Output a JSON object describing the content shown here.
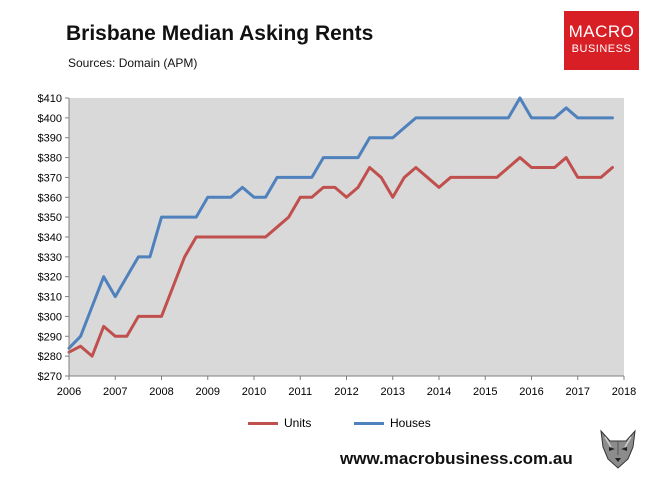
{
  "header": {
    "title": "Brisbane Median Asking Rents",
    "subtitle": "Sources: Domain (APM)"
  },
  "brand": {
    "logo_line1": "MACRO",
    "logo_line2": "BUSINESS",
    "logo_color": "#d91f26",
    "website": "www.macrobusiness.com.au",
    "mascot_icon": "wolf-icon"
  },
  "chart_data": {
    "type": "line",
    "title": "Brisbane Median Asking Rents",
    "xlabel": "",
    "ylabel": "",
    "xlim": [
      2006,
      2018
    ],
    "ylim": [
      270,
      410
    ],
    "x_ticks": [
      2006,
      2007,
      2008,
      2009,
      2010,
      2011,
      2012,
      2013,
      2014,
      2015,
      2016,
      2017,
      2018
    ],
    "y_ticks": [
      270,
      280,
      290,
      300,
      310,
      320,
      330,
      340,
      350,
      360,
      370,
      380,
      390,
      400,
      410
    ],
    "y_tick_labels": [
      "$270",
      "$280",
      "$290",
      "$300",
      "$310",
      "$320",
      "$330",
      "$340",
      "$350",
      "$360",
      "$370",
      "$380",
      "$390",
      "$400",
      "$410"
    ],
    "grid": false,
    "legend_position": "bottom",
    "plot_background": "#d9d9d9",
    "series": [
      {
        "name": "Units",
        "color": "#c0504d",
        "x": [
          2006.0,
          2006.25,
          2006.5,
          2006.75,
          2007.0,
          2007.25,
          2007.5,
          2007.75,
          2008.0,
          2008.25,
          2008.5,
          2008.75,
          2009.0,
          2009.25,
          2009.5,
          2009.75,
          2010.0,
          2010.25,
          2010.5,
          2010.75,
          2011.0,
          2011.25,
          2011.5,
          2011.75,
          2012.0,
          2012.25,
          2012.5,
          2012.75,
          2013.0,
          2013.25,
          2013.5,
          2013.75,
          2014.0,
          2014.25,
          2014.5,
          2014.75,
          2015.0,
          2015.25,
          2015.5,
          2015.75,
          2016.0,
          2016.25,
          2016.5,
          2016.75,
          2017.0,
          2017.25,
          2017.5,
          2017.75
        ],
        "y": [
          282,
          285,
          280,
          295,
          290,
          290,
          300,
          300,
          300,
          315,
          330,
          340,
          340,
          340,
          340,
          340,
          340,
          340,
          345,
          350,
          360,
          360,
          365,
          365,
          360,
          365,
          375,
          370,
          360,
          370,
          375,
          370,
          365,
          370,
          370,
          370,
          370,
          370,
          375,
          380,
          375,
          375,
          375,
          380,
          370,
          370,
          370,
          375
        ]
      },
      {
        "name": "Houses",
        "color": "#4f81bd",
        "x": [
          2006.0,
          2006.25,
          2006.5,
          2006.75,
          2007.0,
          2007.25,
          2007.5,
          2007.75,
          2008.0,
          2008.25,
          2008.5,
          2008.75,
          2009.0,
          2009.25,
          2009.5,
          2009.75,
          2010.0,
          2010.25,
          2010.5,
          2010.75,
          2011.0,
          2011.25,
          2011.5,
          2011.75,
          2012.0,
          2012.25,
          2012.5,
          2012.75,
          2013.0,
          2013.25,
          2013.5,
          2013.75,
          2014.0,
          2014.25,
          2014.5,
          2014.75,
          2015.0,
          2015.25,
          2015.5,
          2015.75,
          2016.0,
          2016.25,
          2016.5,
          2016.75,
          2017.0,
          2017.25,
          2017.5,
          2017.75
        ],
        "y": [
          284,
          290,
          305,
          320,
          310,
          320,
          330,
          330,
          350,
          350,
          350,
          350,
          360,
          360,
          360,
          365,
          360,
          360,
          370,
          370,
          370,
          370,
          380,
          380,
          380,
          380,
          390,
          390,
          390,
          395,
          400,
          400,
          400,
          400,
          400,
          400,
          400,
          400,
          400,
          410,
          400,
          400,
          400,
          405,
          400,
          400,
          400,
          400
        ]
      }
    ]
  }
}
